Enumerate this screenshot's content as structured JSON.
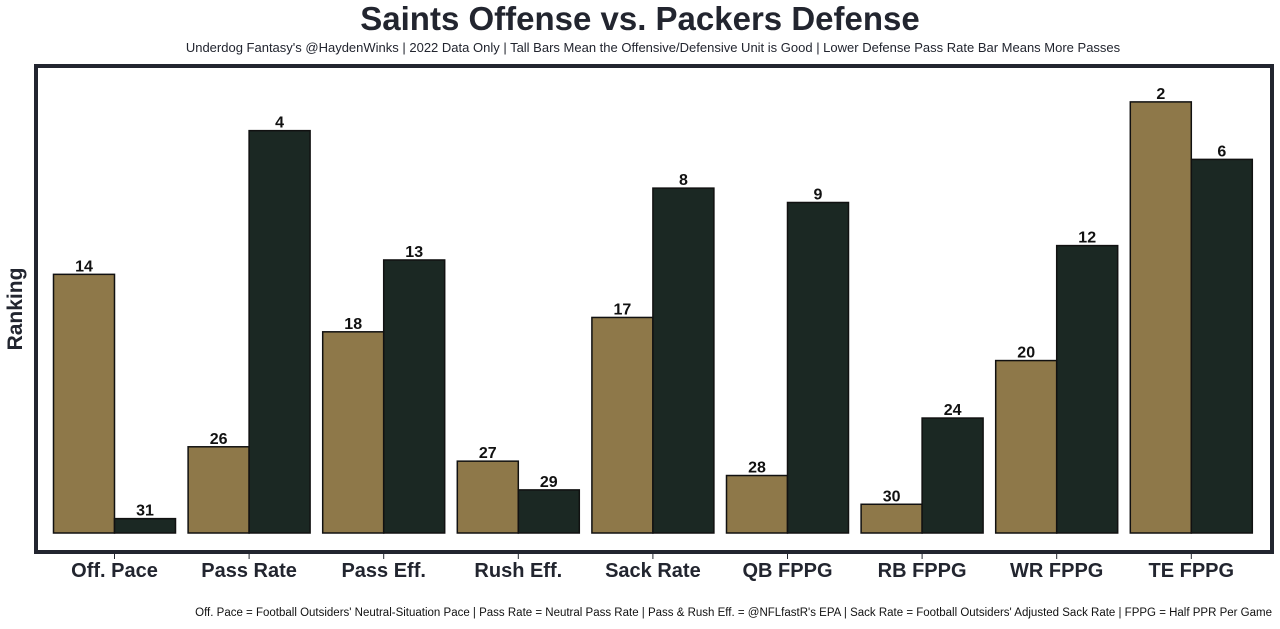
{
  "title": "Saints Offense vs. Packers Defense",
  "subtitle": "Underdog Fantasy's @HaydenWinks | 2022 Data Only | Tall Bars Mean the Offensive/Defensive Unit is Good | Lower Defense Pass Rate Bar Means More Passes",
  "footnote": "Off. Pace = Football Outsiders' Neutral-Situation Pace | Pass Rate = Neutral Pass Rate | Pass & Rush Eff. = @NFLfastR's EPA | Sack Rate = Football Outsiders' Adjusted Sack Rate | FPPG = Half PPR Per Game",
  "colors": {
    "offense": "#8e7849",
    "defense": "#1b2823",
    "frame": "#22252f",
    "text": "#22252f"
  },
  "chart_data": {
    "type": "bar",
    "title": "Saints Offense vs. Packers Defense",
    "xlabel": "",
    "ylabel": "Ranking",
    "categories": [
      "Off. Pace",
      "Pass Rate",
      "Pass Eff.",
      "Rush Eff.",
      "Sack Rate",
      "QB FPPG",
      "RB FPPG",
      "WR FPPG",
      "TE FPPG"
    ],
    "series": [
      {
        "name": "Saints Offense",
        "values": [
          14,
          26,
          18,
          27,
          17,
          28,
          30,
          20,
          2
        ]
      },
      {
        "name": "Packers Defense",
        "values": [
          31,
          4,
          13,
          29,
          8,
          9,
          24,
          12,
          6
        ]
      }
    ],
    "value_semantics": "rank (1 = best); bar height = 32 - rank",
    "rank_max": 32,
    "grid": false,
    "legend": "none",
    "y_ticks_visible": false
  }
}
